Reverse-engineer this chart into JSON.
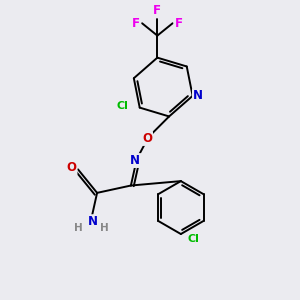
{
  "background_color": "#ebebf0",
  "bond_color": "#000000",
  "atom_colors": {
    "N": "#0000cc",
    "O": "#cc0000",
    "Cl": "#00bb00",
    "F": "#ee00ee",
    "C": "#000000",
    "H": "#888888"
  },
  "figsize": [
    3.0,
    3.0
  ],
  "dpi": 100
}
